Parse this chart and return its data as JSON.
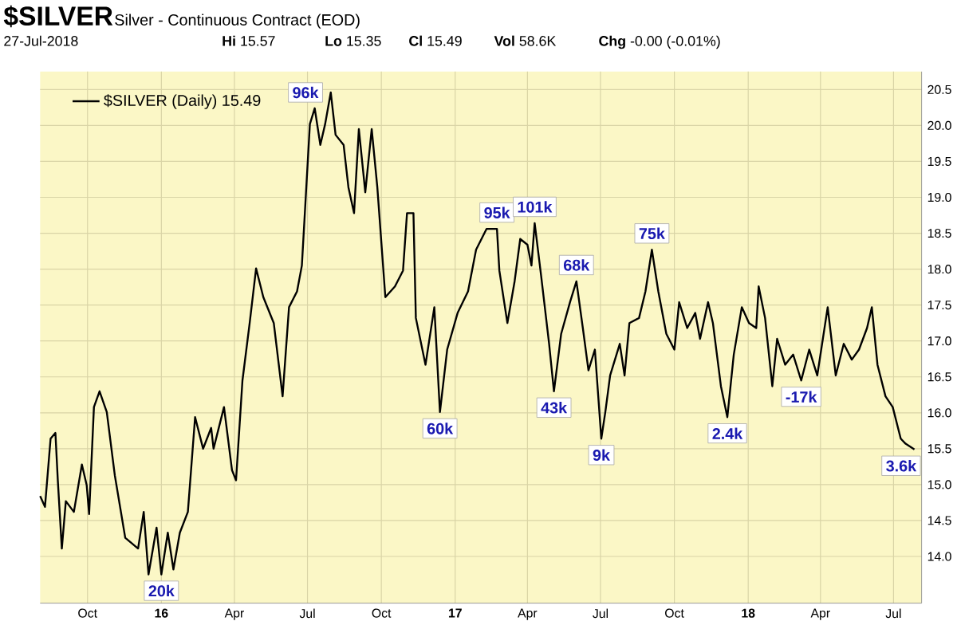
{
  "chart_data": {
    "type": "line",
    "title": "$SILVER",
    "subtitle": "Silver - Continuous Contract (EOD)",
    "annotations": [
      "27-Jul-2018",
      "**Hi** 15.57",
      "**Lo** 15.35",
      "**Cl** 15.49",
      "**Vol** 58.6K",
      "**Chg** -0.00 (-0.01%)",
      {
        "text": "96k",
        "x": "2016-07-30",
        "y": 20.46
      },
      {
        "text": "20k",
        "x": "2016-01-01",
        "y": 13.75
      },
      {
        "text": "60k",
        "x": "2016-12-13",
        "y": 16.01
      },
      {
        "text": "95k",
        "x": "2017-02-22",
        "y": 18.56
      },
      {
        "text": "101k",
        "x": "2017-04-10",
        "y": 18.64
      },
      {
        "text": "43k",
        "x": "2017-05-04",
        "y": 16.3
      },
      {
        "text": "68k",
        "x": "2017-06-01",
        "y": 17.83
      },
      {
        "text": "9k",
        "x": "2017-07-02",
        "y": 15.64
      },
      {
        "text": "75k",
        "x": "2017-09-03",
        "y": 18.27
      },
      {
        "text": "2.4k",
        "x": "2017-12-06",
        "y": 15.94
      },
      {
        "text": "-17k",
        "x": "2018-03-08",
        "y": 16.45
      },
      {
        "text": "3.6k",
        "x": "2018-07-27",
        "y": 15.49
      }
    ],
    "xlim": [
      "2015-08-03",
      "2018-08-05"
    ],
    "ylim": [
      13.35,
      20.75
    ],
    "xticks": [
      {
        "value": "2015-10-01",
        "label": "Oct"
      },
      {
        "value": "2016-01-01",
        "label": "16"
      },
      {
        "value": "2016-04-01",
        "label": "Apr"
      },
      {
        "value": "2016-07-01",
        "label": "Jul"
      },
      {
        "value": "2016-10-01",
        "label": "Oct"
      },
      {
        "value": "2017-01-01",
        "label": "17"
      },
      {
        "value": "2017-04-01",
        "label": "Apr"
      },
      {
        "value": "2017-07-01",
        "label": "Jul"
      },
      {
        "value": "2017-10-01",
        "label": "Oct"
      },
      {
        "value": "2018-01-01",
        "label": "18"
      },
      {
        "value": "2018-04-01",
        "label": "Apr"
      },
      {
        "value": "2018-07-01",
        "label": "Jul"
      }
    ],
    "yticks": [
      {
        "value": 14,
        "label": "14.0"
      },
      {
        "value": 14.5,
        "label": "14.5"
      },
      {
        "value": 15,
        "label": "15.0"
      },
      {
        "value": 15.5,
        "label": "15.5"
      },
      {
        "value": 16,
        "label": "16.0"
      },
      {
        "value": 16.5,
        "label": "16.5"
      },
      {
        "value": 17,
        "label": "17.0"
      },
      {
        "value": 17.5,
        "label": "17.5"
      },
      {
        "value": 18,
        "label": "18.0"
      },
      {
        "value": 18.5,
        "label": "18.5"
      },
      {
        "value": 19,
        "label": "19.0"
      },
      {
        "value": 19.5,
        "label": "19.5"
      },
      {
        "value": 20,
        "label": "20.0"
      },
      {
        "value": 20.5,
        "label": "20.5"
      }
    ],
    "grid": true,
    "legend": "top left",
    "marker": "none",
    "line_style": "solid",
    "series": [
      {
        "name": "$SILVER (Daily) 15.49",
        "color": "#000000",
        "x": [
          "2015-08-03",
          "2015-08-09",
          "2015-08-16",
          "2015-08-22",
          "2015-08-25",
          "2015-08-30",
          "2015-09-04",
          "2015-09-14",
          "2015-09-24",
          "2015-09-30",
          "2015-10-03",
          "2015-10-09",
          "2015-10-16",
          "2015-10-25",
          "2015-11-04",
          "2015-11-17",
          "2015-12-03",
          "2015-12-10",
          "2015-12-16",
          "2015-12-26",
          "2016-01-01",
          "2016-01-09",
          "2016-01-16",
          "2016-01-24",
          "2016-02-03",
          "2016-02-12",
          "2016-02-22",
          "2016-03-03",
          "2016-03-06",
          "2016-03-19",
          "2016-03-29",
          "2016-04-03",
          "2016-04-11",
          "2016-04-20",
          "2016-04-28",
          "2016-05-07",
          "2016-05-20",
          "2016-05-31",
          "2016-06-08",
          "2016-06-18",
          "2016-06-24",
          "2016-07-04",
          "2016-07-10",
          "2016-07-17",
          "2016-07-23",
          "2016-07-30",
          "2016-08-05",
          "2016-08-15",
          "2016-08-21",
          "2016-08-28",
          "2016-09-03",
          "2016-09-11",
          "2016-09-19",
          "2016-09-26",
          "2016-10-06",
          "2016-10-18",
          "2016-10-28",
          "2016-11-02",
          "2016-11-10",
          "2016-11-13",
          "2016-11-25",
          "2016-12-06",
          "2016-12-13",
          "2016-12-22",
          "2017-01-04",
          "2017-01-17",
          "2017-01-27",
          "2017-02-09",
          "2017-02-22",
          "2017-02-25",
          "2017-03-07",
          "2017-03-16",
          "2017-03-23",
          "2017-04-01",
          "2017-04-06",
          "2017-04-10",
          "2017-04-18",
          "2017-04-28",
          "2017-05-04",
          "2017-05-13",
          "2017-05-24",
          "2017-06-01",
          "2017-06-09",
          "2017-06-16",
          "2017-06-24",
          "2017-07-02",
          "2017-07-07",
          "2017-07-13",
          "2017-07-25",
          "2017-07-31",
          "2017-08-06",
          "2017-08-18",
          "2017-08-26",
          "2017-09-03",
          "2017-09-11",
          "2017-09-21",
          "2017-10-01",
          "2017-10-07",
          "2017-10-17",
          "2017-10-27",
          "2017-11-02",
          "2017-11-12",
          "2017-11-18",
          "2017-11-28",
          "2017-12-06",
          "2017-12-14",
          "2017-12-24",
          "2018-01-02",
          "2018-01-11",
          "2018-01-14",
          "2018-01-22",
          "2018-01-31",
          "2018-02-06",
          "2018-02-16",
          "2018-02-26",
          "2018-03-08",
          "2018-03-18",
          "2018-03-28",
          "2018-04-10",
          "2018-04-20",
          "2018-04-30",
          "2018-05-10",
          "2018-05-19",
          "2018-05-29",
          "2018-06-04",
          "2018-06-11",
          "2018-06-21",
          "2018-06-30",
          "2018-07-10",
          "2018-07-16",
          "2018-07-27"
        ],
        "values": [
          14.84,
          14.69,
          15.64,
          15.72,
          15.06,
          14.11,
          14.77,
          14.62,
          15.28,
          14.99,
          14.59,
          16.08,
          16.3,
          16.01,
          15.13,
          14.26,
          14.11,
          14.62,
          13.75,
          14.4,
          13.75,
          14.33,
          13.82,
          14.33,
          14.62,
          15.94,
          15.5,
          15.79,
          15.5,
          16.08,
          15.2,
          15.06,
          16.45,
          17.25,
          18.01,
          17.61,
          17.25,
          16.23,
          17.47,
          17.69,
          18.05,
          20.02,
          20.24,
          19.73,
          20.02,
          20.46,
          19.87,
          19.73,
          19.14,
          18.78,
          19.95,
          19.07,
          19.95,
          19.14,
          17.61,
          17.76,
          17.98,
          18.78,
          18.78,
          17.32,
          16.67,
          17.47,
          16.01,
          16.88,
          17.39,
          17.69,
          18.27,
          18.56,
          18.56,
          17.98,
          17.25,
          17.83,
          18.42,
          18.34,
          18.05,
          18.64,
          17.91,
          16.96,
          16.3,
          17.1,
          17.54,
          17.83,
          17.18,
          16.59,
          16.88,
          15.64,
          16.01,
          16.52,
          16.96,
          16.52,
          17.25,
          17.32,
          17.69,
          18.27,
          17.69,
          17.1,
          16.88,
          17.54,
          17.18,
          17.39,
          17.03,
          17.54,
          17.25,
          16.37,
          15.94,
          16.81,
          17.47,
          17.25,
          17.18,
          17.76,
          17.32,
          16.37,
          17.03,
          16.67,
          16.81,
          16.45,
          16.88,
          16.52,
          17.47,
          16.52,
          16.96,
          16.74,
          16.88,
          17.18,
          17.47,
          16.67,
          16.23,
          16.08,
          15.64,
          15.57,
          15.49
        ]
      }
    ]
  }
}
